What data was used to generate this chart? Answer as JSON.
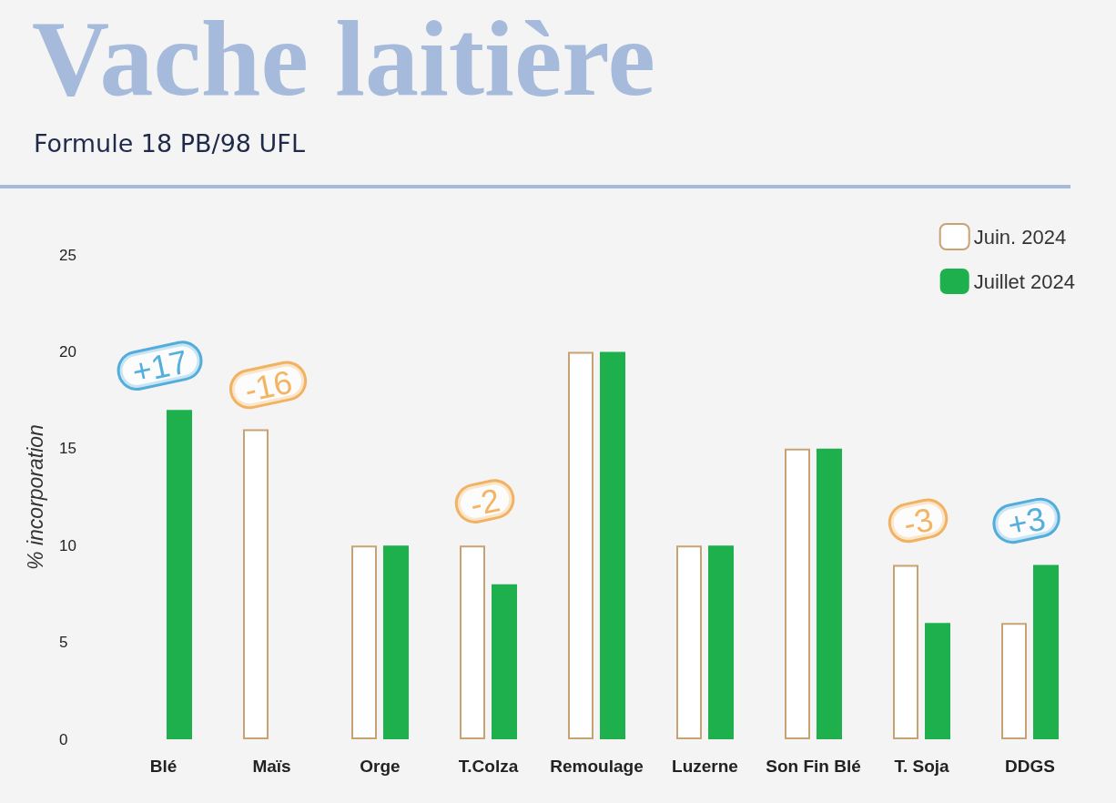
{
  "chart_data": {
    "type": "bar",
    "title": "Vache laitière",
    "subtitle": "Formule 18 PB/98 UFL",
    "ylabel": "% incorporation",
    "categories": [
      "Blé",
      "Maïs",
      "Orge",
      "T.Colza",
      "Remoulage",
      "Luzerne",
      "Son Fin Blé",
      "T. Soja",
      "DDGS"
    ],
    "series": [
      {
        "name": "Juin. 2024",
        "color": "#c9a274",
        "values": [
          null,
          16,
          10,
          10,
          20,
          10,
          15,
          9,
          6
        ]
      },
      {
        "name": "Juillet 2024",
        "color": "#1eb04d",
        "values": [
          17,
          null,
          10,
          8,
          20,
          10,
          15,
          6,
          9
        ]
      }
    ],
    "ylim": [
      0,
      25
    ],
    "yticks": [
      0,
      5,
      10,
      15,
      20,
      25
    ],
    "grid": false,
    "legend": "top right",
    "annotations": [
      {
        "text": "+17",
        "x": "Blé",
        "y": 17
      },
      {
        "text": "-16",
        "x": "Maïs",
        "y": 16
      },
      {
        "text": "-2",
        "x": "T.Colza",
        "y": 10
      },
      {
        "text": "-3",
        "x": "T. Soja",
        "y": 9
      },
      {
        "text": "+3",
        "x": "DDGS",
        "y": 9
      }
    ]
  }
}
